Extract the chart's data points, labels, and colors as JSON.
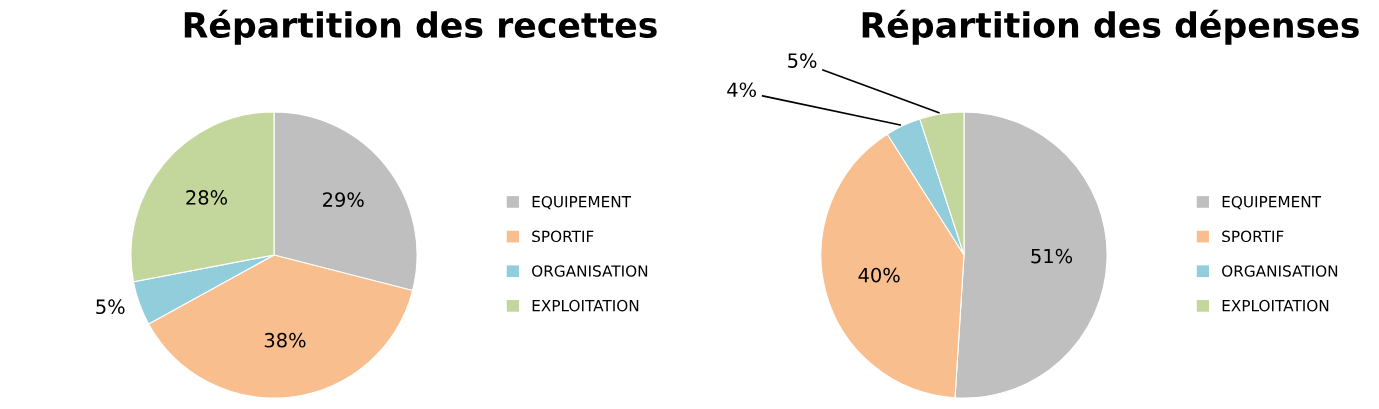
{
  "chart_data": [
    {
      "type": "pie",
      "title": "Répartition des recettes",
      "categories": [
        "EQUIPEMENT",
        "SPORTIF",
        "ORGANISATION",
        "EXPLOITATION"
      ],
      "values": [
        29,
        38,
        5,
        28
      ],
      "colors": [
        "#bfbfbf",
        "#f9be8e",
        "#92cddc",
        "#c3d69b"
      ],
      "value_labels": [
        "29%",
        "38%",
        "5%",
        "28%"
      ],
      "legend": "right"
    },
    {
      "type": "pie",
      "title": "Répartition des dépenses",
      "categories": [
        "EQUIPEMENT",
        "SPORTIF",
        "ORGANISATION",
        "EXPLOITATION"
      ],
      "values": [
        51,
        40,
        4,
        5
      ],
      "colors": [
        "#bfbfbf",
        "#f9be8e",
        "#92cddc",
        "#c3d69b"
      ],
      "value_labels": [
        "51%",
        "40%",
        "4%",
        "5%"
      ],
      "legend": "right"
    }
  ]
}
